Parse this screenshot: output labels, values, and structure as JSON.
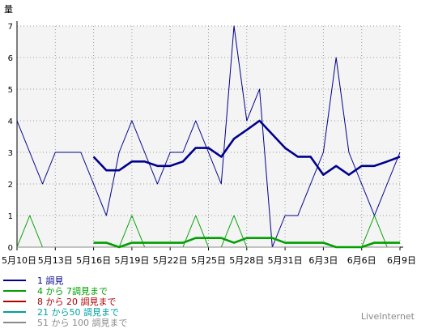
{
  "chart_data": {
    "type": "line",
    "ylabel": "量",
    "ylim": [
      0,
      7
    ],
    "yticks": [
      "0",
      "1",
      "2",
      "3",
      "4",
      "5",
      "6",
      "7"
    ],
    "xticks": [
      "5月10日",
      "5月13日",
      "5月16日",
      "5月19日",
      "5月22日",
      "5月25日",
      "5月28日",
      "5月31日",
      "6月3日",
      "6月6日",
      "6月9日"
    ],
    "grid": true,
    "x": [
      "5月10日",
      "5月11日",
      "5月12日",
      "5月13日",
      "5月14日",
      "5月15日",
      "5月16日",
      "5月17日",
      "5月18日",
      "5月19日",
      "5月20日",
      "5月21日",
      "5月22日",
      "5月23日",
      "5月24日",
      "5月25日",
      "5月26日",
      "5月27日",
      "5月28日",
      "5月29日",
      "5月30日",
      "5月31日",
      "6月1日",
      "6月2日",
      "6月3日",
      "6月4日",
      "6月5日",
      "6月6日",
      "6月7日",
      "6月8日",
      "6月9日"
    ],
    "series": [
      {
        "name": "1 調見",
        "color": "#00008b",
        "values": [
          4,
          3,
          2,
          3,
          3,
          3,
          2,
          1,
          3,
          4,
          3,
          2,
          3,
          3,
          4,
          3,
          2,
          7,
          4,
          5,
          0,
          1,
          1,
          2,
          3,
          6,
          3,
          2,
          1,
          2,
          3
        ]
      },
      {
        "name": "1 調見 (移動平均)",
        "color": "#00008b",
        "bold": true,
        "values": [
          null,
          null,
          null,
          null,
          null,
          null,
          2.86,
          2.43,
          2.43,
          2.71,
          2.71,
          2.57,
          2.57,
          2.71,
          3.14,
          3.14,
          2.86,
          3.43,
          3.71,
          4.0,
          3.57,
          3.14,
          2.86,
          2.86,
          2.29,
          2.57,
          2.29,
          2.57,
          2.57,
          2.71,
          2.86
        ]
      },
      {
        "name": "4 から 7調見まで",
        "color": "#00a000",
        "values": [
          0,
          1,
          0,
          0,
          0,
          0,
          0,
          0,
          0,
          1,
          0,
          0,
          0,
          0,
          1,
          0,
          0,
          1,
          0,
          0,
          0,
          0,
          0,
          0,
          0,
          0,
          0,
          0,
          1,
          0,
          0
        ]
      },
      {
        "name": "4 から 7調見まで (移動平均)",
        "color": "#00a000",
        "bold": true,
        "values": [
          null,
          null,
          null,
          null,
          null,
          null,
          0.14,
          0.14,
          0,
          0.14,
          0.14,
          0.14,
          0.14,
          0.14,
          0.29,
          0.29,
          0.29,
          0.14,
          0.29,
          0.29,
          0.29,
          0.14,
          0.14,
          0.14,
          0.14,
          0,
          0,
          0,
          0.14,
          0.14,
          0.14
        ]
      },
      {
        "name": "8 から 20 調見まで",
        "color": "#b00000",
        "values": [
          0,
          0,
          0,
          0,
          0,
          0,
          0,
          0,
          0,
          0,
          0,
          0,
          0,
          0,
          0,
          0,
          0,
          0,
          0,
          0,
          0,
          0,
          0,
          0,
          0,
          0,
          0,
          0,
          0,
          0,
          0
        ]
      },
      {
        "name": "21 から50 調見まで",
        "color": "#00a0a0",
        "values": [
          0,
          0,
          0,
          0,
          0,
          0,
          0,
          0,
          0,
          0,
          0,
          0,
          0,
          0,
          0,
          0,
          0,
          0,
          0,
          0,
          0,
          0,
          0,
          0,
          0,
          0,
          0,
          0,
          0,
          0,
          0
        ]
      },
      {
        "name": "51 から 100 調見まで",
        "color": "#8a8a8a",
        "values": [
          0,
          0,
          0,
          0,
          0,
          0,
          0,
          0,
          0,
          0,
          0,
          0,
          0,
          0,
          0,
          0,
          0,
          0,
          0,
          0,
          0,
          0,
          0,
          0,
          0,
          0,
          0,
          0,
          0,
          0,
          0
        ]
      }
    ],
    "legend": [
      {
        "label": "1 調見",
        "color": "#00008b"
      },
      {
        "label": "4 から 7調見まで",
        "color": "#00a000"
      },
      {
        "label": "8 から 20 調見まで",
        "color": "#b00000"
      },
      {
        "label": "21 から50 調見まで",
        "color": "#00a0a0"
      },
      {
        "label": "51 から 100 調見まで",
        "color": "#8a8a8a"
      }
    ],
    "legend_position": "bottom-left"
  },
  "watermark": "LiveInternet"
}
